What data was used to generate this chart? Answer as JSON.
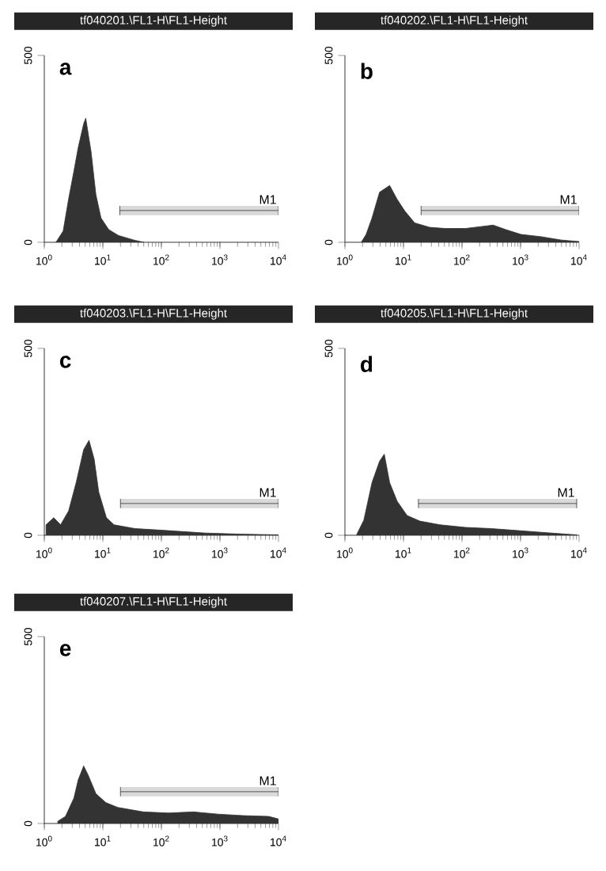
{
  "chart_data": [
    {
      "type": "area",
      "title": "tf040201.\\FL1-H\\FL1-Height",
      "annotations": [
        "a"
      ],
      "log": "x",
      "grid": false,
      "xlim": [
        1,
        10000
      ],
      "ylim": [
        0,
        500
      ],
      "xticks": [
        {
          "value": 1,
          "label": "10$^{0}$"
        },
        {
          "value": 10,
          "label": "10$^{1}$"
        },
        {
          "value": 100,
          "label": "10$^{2}$"
        },
        {
          "value": 1000,
          "label": "10$^{3}$"
        },
        {
          "value": 10000,
          "label": "10$^{4}$"
        }
      ],
      "yticks": [
        0,
        500
      ],
      "bands": [
        {
          "axis": "x",
          "from": 19.5,
          "to": 10000,
          "label": "M1"
        }
      ],
      "series": [
        {
          "color": "#333333",
          "x": [
            1.58,
            2.1,
            2.6,
            3.2,
            3.8,
            4.7,
            5.1,
            6.3,
            7.6,
            9.3,
            12.6,
            18.6,
            34,
            50
          ],
          "values": [
            0,
            30,
            116,
            190,
            254,
            317,
            332,
            242,
            128,
            65,
            34,
            18,
            6,
            0
          ]
        }
      ]
    },
    {
      "type": "area",
      "title": "tf040202.\\FL1-H\\FL1-Height",
      "annotations": [
        "b"
      ],
      "log": "x",
      "grid": false,
      "xlim": [
        1,
        10000
      ],
      "ylim": [
        0,
        500
      ],
      "xticks": [
        {
          "value": 1,
          "label": "10$^{0}$"
        },
        {
          "value": 10,
          "label": "10$^{1}$"
        },
        {
          "value": 100,
          "label": "10$^{2}$"
        },
        {
          "value": 1000,
          "label": "10$^{3}$"
        },
        {
          "value": 10000,
          "label": "10$^{4}$"
        }
      ],
      "yticks": [
        0,
        500
      ],
      "bands": [
        {
          "axis": "x",
          "from": 20,
          "to": 10000,
          "label": "M1"
        }
      ],
      "series": [
        {
          "color": "#333333",
          "x": [
            1.9,
            2.3,
            2.9,
            3.9,
            5.8,
            7.8,
            10.5,
            15.5,
            28,
            51,
            115,
            210,
            340,
            560,
            1020,
            2240,
            5000,
            10000
          ],
          "values": [
            0,
            21,
            65,
            134,
            152,
            115,
            84,
            52,
            40,
            37,
            37,
            42,
            46,
            34,
            21,
            15,
            6,
            2
          ]
        }
      ]
    },
    {
      "type": "area",
      "title": "tf040203.\\FL1-H\\FL1-Height",
      "annotations": [
        "c"
      ],
      "log": "x",
      "grid": false,
      "xlim": [
        1,
        10000
      ],
      "ylim": [
        0,
        500
      ],
      "xticks": [
        {
          "value": 1,
          "label": "10$^{0}$"
        },
        {
          "value": 10,
          "label": "10$^{1}$"
        },
        {
          "value": 100,
          "label": "10$^{2}$"
        },
        {
          "value": 1000,
          "label": "10$^{3}$"
        },
        {
          "value": 10000,
          "label": "10$^{4}$"
        }
      ],
      "yticks": [
        0,
        500
      ],
      "bands": [
        {
          "axis": "x",
          "from": 20,
          "to": 10000,
          "label": "M1"
        }
      ],
      "series": [
        {
          "color": "#333333",
          "x": [
            1.07,
            1.45,
            1.9,
            2.6,
            3.5,
            4.7,
            5.8,
            7.1,
            8.5,
            11.5,
            15.5,
            35,
            115,
            560,
            2240,
            10000
          ],
          "values": [
            28,
            47,
            28,
            65,
            141,
            229,
            254,
            204,
            116,
            47,
            28,
            18,
            13,
            6,
            3,
            1
          ]
        }
      ]
    },
    {
      "type": "area",
      "title": "tf040205.\\FL1-H\\FL1-Height",
      "annotations": [
        "d"
      ],
      "log": "x",
      "grid": false,
      "xlim": [
        1,
        10000
      ],
      "ylim": [
        0,
        500
      ],
      "xticks": [
        {
          "value": 1,
          "label": "10$^{0}$"
        },
        {
          "value": 10,
          "label": "10$^{1}$"
        },
        {
          "value": 100,
          "label": "10$^{2}$"
        },
        {
          "value": 1000,
          "label": "10$^{3}$"
        },
        {
          "value": 10000,
          "label": "10$^{4}$"
        }
      ],
      "yticks": [
        0,
        500
      ],
      "bands": [
        {
          "axis": "x",
          "from": 18,
          "to": 9100,
          "label": "M1"
        }
      ],
      "series": [
        {
          "color": "#333333",
          "x": [
            1.6,
            2.1,
            2.9,
            3.9,
            4.7,
            5.8,
            7.8,
            11.5,
            19,
            42,
            115,
            310,
            830,
            2240,
            6000,
            9100
          ],
          "values": [
            3,
            40,
            141,
            198,
            217,
            141,
            91,
            53,
            38,
            28,
            21,
            18,
            13,
            8,
            3,
            1
          ]
        }
      ]
    },
    {
      "type": "area",
      "title": "tf040207.\\FL1-H\\FL1-Height",
      "annotations": [
        "e"
      ],
      "log": "x",
      "grid": false,
      "xlim": [
        1,
        10000
      ],
      "ylim": [
        0,
        500
      ],
      "xticks": [
        {
          "value": 1,
          "label": "10$^{0}$"
        },
        {
          "value": 10,
          "label": "10$^{1}$"
        },
        {
          "value": 100,
          "label": "10$^{2}$"
        },
        {
          "value": 1000,
          "label": "10$^{3}$"
        },
        {
          "value": 10000,
          "label": "10$^{4}$"
        }
      ],
      "yticks": [
        0,
        500
      ],
      "bands": [
        {
          "axis": "x",
          "from": 20,
          "to": 10000,
          "label": "M1"
        }
      ],
      "series": [
        {
          "color": "#333333",
          "x": [
            1.7,
            2.3,
            3.2,
            3.8,
            4.7,
            5.6,
            7.6,
            11.2,
            18,
            49,
            132,
            355,
            930,
            2500,
            6800,
            10000
          ],
          "values": [
            6,
            19,
            68,
            117,
            154,
            130,
            80,
            56,
            43,
            31,
            28,
            31,
            25,
            21,
            19,
            12
          ]
        }
      ]
    }
  ]
}
